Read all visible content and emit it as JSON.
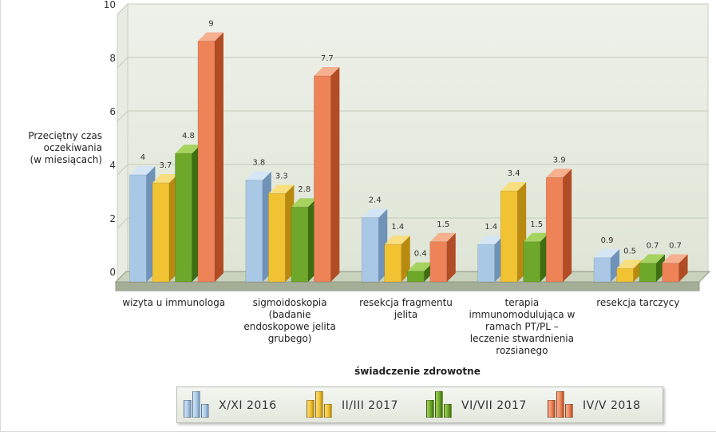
{
  "chart_data": {
    "type": "bar",
    "ylabel": [
      "Przeciętny czas",
      "oczekiwania",
      "(w miesiącach)"
    ],
    "xlabel": "świadczenie zdrowotne",
    "ylim": [
      0,
      10
    ],
    "yticks": [
      0,
      2,
      4,
      6,
      8,
      10
    ],
    "categories": [
      [
        "wizyta u immunologa"
      ],
      [
        "sigmoidoskopia",
        "(badanie",
        "endoskopowe jelita",
        "grubego)"
      ],
      [
        "resekcja fragmentu",
        "jelita"
      ],
      [
        "terapia",
        "immunomodulująca w",
        "ramach PT/PL –",
        "leczenie stwardnienia",
        "rozsianego"
      ],
      [
        "resekcja tarczycy"
      ]
    ],
    "series": [
      {
        "name": "X/XI 2016",
        "values": [
          4,
          3.8,
          2.4,
          1.4,
          0.9
        ],
        "color": "#a9c8e6",
        "side": "#6f93b8",
        "top": "#d4e6f6"
      },
      {
        "name": "II/III 2017",
        "values": [
          3.7,
          3.3,
          1.4,
          3.4,
          0.5
        ],
        "color": "#f1c232",
        "side": "#b98a10",
        "top": "#f8de7e"
      },
      {
        "name": "VI/VII 2017",
        "values": [
          4.8,
          2.8,
          0.4,
          1.5,
          0.7
        ],
        "color": "#6ea82a",
        "side": "#3f6e12",
        "top": "#a6d25e"
      },
      {
        "name": "IV/V 2018",
        "values": [
          9,
          7.7,
          1.5,
          3.9,
          0.7
        ],
        "color": "#ee8358",
        "side": "#b24c25",
        "top": "#f6b08f"
      }
    ],
    "legend": "bottom",
    "grid": true
  }
}
